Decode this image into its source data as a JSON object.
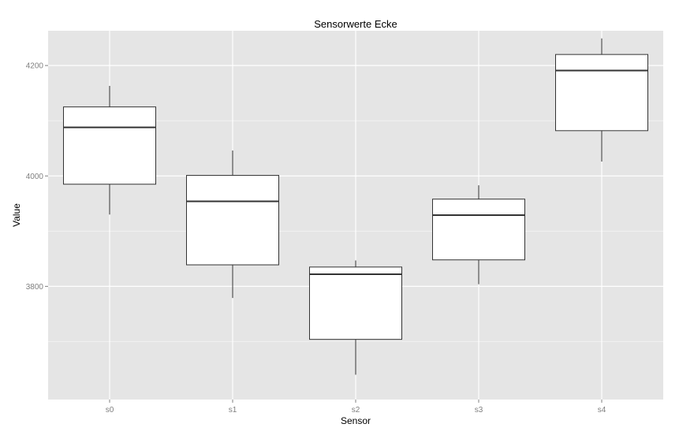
{
  "chart_data": {
    "type": "boxplot",
    "title": "Sensorwerte Ecke",
    "xlabel": "Sensor",
    "ylabel": "Value",
    "ylim": [
      3595,
      4263
    ],
    "yticks": [
      3800,
      4000,
      4200
    ],
    "ytick_labels": [
      "3800",
      "4000",
      "4200"
    ],
    "categories": [
      "s0",
      "s1",
      "s2",
      "s3",
      "s4"
    ],
    "boxes": [
      {
        "name": "s0",
        "min": 3930,
        "q1": 3985,
        "median": 4088,
        "q3": 4125,
        "max": 4163
      },
      {
        "name": "s1",
        "min": 3779,
        "q1": 3839,
        "median": 3954,
        "q3": 4001,
        "max": 4046
      },
      {
        "name": "s2",
        "min": 3640,
        "q1": 3704,
        "median": 3822,
        "q3": 3835,
        "max": 3847
      },
      {
        "name": "s3",
        "min": 3804,
        "q1": 3848,
        "median": 3929,
        "q3": 3958,
        "max": 3983
      },
      {
        "name": "s4",
        "min": 4026,
        "q1": 4082,
        "median": 4191,
        "q3": 4220,
        "max": 4249
      }
    ],
    "grid": true,
    "colors": {
      "panel": "#e5e5e5",
      "grid_major": "#ffffff",
      "grid_minor": "#f2f2f2",
      "box_fill": "#ffffff",
      "box_stroke": "#333333"
    }
  }
}
